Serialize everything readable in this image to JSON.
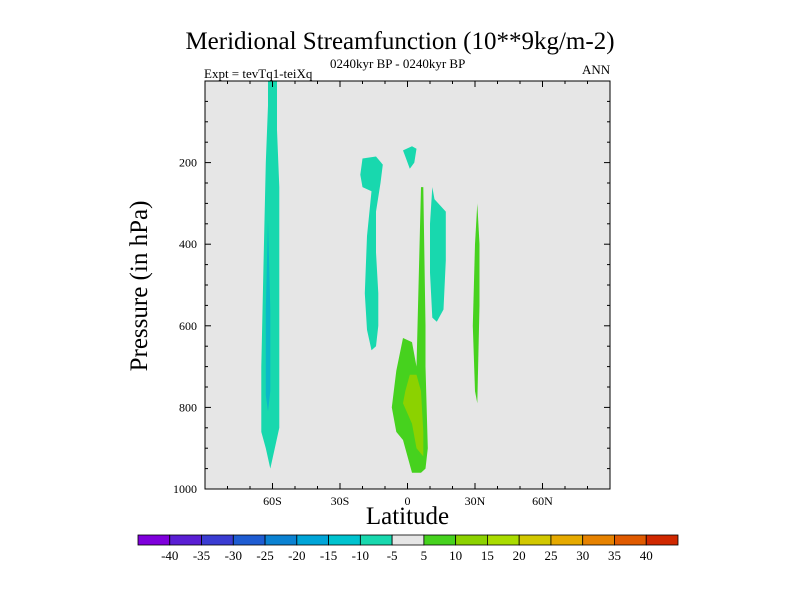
{
  "chart_data": {
    "type": "contour",
    "title": "Meridional Streamfunction (10**9kg/m-2)",
    "subtitle_left": "Expt = tevTq1-teiXq",
    "subtitle_center": "0240kyr BP - 0240kyr BP",
    "subtitle_right": "ANN",
    "xlabel": "Latitude",
    "ylabel": "Pressure (in hPa)",
    "xlim": [
      -90,
      90
    ],
    "ylim": [
      1000,
      0
    ],
    "x_ticks": [
      "60S",
      "30S",
      "0",
      "30N",
      "60N"
    ],
    "x_tick_values": [
      -60,
      -30,
      0,
      30,
      60
    ],
    "y_ticks": [
      "200",
      "400",
      "600",
      "800",
      "1000"
    ],
    "y_tick_values": [
      200,
      400,
      600,
      800,
      1000
    ],
    "background_color": "#e6e6e6",
    "colorbar": {
      "labels": [
        "-40",
        "-35",
        "-30",
        "-25",
        "-20",
        "-15",
        "-10",
        "-5",
        "5",
        "10",
        "15",
        "20",
        "25",
        "30",
        "35",
        "40"
      ],
      "colors": [
        "#7f00dc",
        "#5a1ed4",
        "#3a3cd2",
        "#1e5cd2",
        "#0a82d2",
        "#00a5d8",
        "#00c3cf",
        "#18d8ae",
        "#e6e6e6",
        "#46d21e",
        "#8cd200",
        "#aadc00",
        "#d2c800",
        "#e6aa00",
        "#e68200",
        "#e05a00",
        "#d02800"
      ]
    },
    "regions": [
      {
        "name": "neg-sh-high",
        "level": "-10",
        "color": "#18d8ae",
        "polygon": [
          [
            -62,
            0
          ],
          [
            -58,
            0
          ],
          [
            -58,
            120
          ],
          [
            -57,
            260
          ],
          [
            -57,
            500
          ],
          [
            -57,
            850
          ],
          [
            -59,
            900
          ],
          [
            -61,
            950
          ],
          [
            -63,
            900
          ],
          [
            -65,
            860
          ],
          [
            -65,
            700
          ],
          [
            -64,
            450
          ],
          [
            -63,
            200
          ],
          [
            -62,
            60
          ]
        ]
      },
      {
        "name": "neg-sh-core",
        "level": "-15",
        "color": "#0ab8c8",
        "polygon": [
          [
            -62,
            340
          ],
          [
            -61,
            560
          ],
          [
            -61,
            760
          ],
          [
            -62,
            810
          ],
          [
            -63,
            770
          ],
          [
            -63,
            560
          ]
        ]
      },
      {
        "name": "neg-subtrop-south",
        "level": "-10",
        "color": "#18d8ae",
        "polygon": [
          [
            -20,
            190
          ],
          [
            -14,
            185
          ],
          [
            -11,
            205
          ],
          [
            -12,
            250
          ],
          [
            -14,
            320
          ],
          [
            -14,
            420
          ],
          [
            -13,
            520
          ],
          [
            -13,
            600
          ],
          [
            -14,
            650
          ],
          [
            -16,
            660
          ],
          [
            -18,
            610
          ],
          [
            -19,
            520
          ],
          [
            -18,
            380
          ],
          [
            -16,
            270
          ],
          [
            -20,
            260
          ],
          [
            -21,
            230
          ]
        ]
      },
      {
        "name": "neg-eq-small",
        "level": "-10",
        "color": "#18d8ae",
        "polygon": [
          [
            -2,
            170
          ],
          [
            2,
            160
          ],
          [
            4,
            166
          ],
          [
            3,
            200
          ],
          [
            1,
            215
          ],
          [
            -1,
            185
          ]
        ]
      },
      {
        "name": "neg-nh-narrow",
        "level": "-10",
        "color": "#18d8ae",
        "polygon": [
          [
            11,
            260
          ],
          [
            12,
            290
          ],
          [
            17,
            320
          ],
          [
            17,
            440
          ],
          [
            16,
            560
          ],
          [
            13,
            590
          ],
          [
            11,
            580
          ],
          [
            10,
            470
          ],
          [
            10,
            350
          ]
        ]
      },
      {
        "name": "pos-lower-eq",
        "level": "5",
        "color": "#46d21e",
        "polygon": [
          [
            -2,
            630
          ],
          [
            2,
            640
          ],
          [
            4,
            700
          ],
          [
            6,
            260
          ],
          [
            7,
            260
          ],
          [
            8,
            600
          ],
          [
            8,
            700
          ],
          [
            9,
            900
          ],
          [
            8,
            950
          ],
          [
            6,
            960
          ],
          [
            2,
            960
          ],
          [
            -2,
            880
          ],
          [
            -5,
            860
          ],
          [
            -7,
            800
          ],
          [
            -5,
            710
          ]
        ]
      },
      {
        "name": "pos-lower-core",
        "level": "10",
        "color": "#8cd200",
        "polygon": [
          [
            1,
            720
          ],
          [
            4,
            720
          ],
          [
            6,
            760
          ],
          [
            7,
            860
          ],
          [
            7,
            920
          ],
          [
            4,
            900
          ],
          [
            2,
            840
          ],
          [
            -2,
            790
          ],
          [
            -1,
            760
          ]
        ]
      },
      {
        "name": "pos-nh-thin",
        "level": "5",
        "color": "#46d21e",
        "polygon": [
          [
            31,
            300
          ],
          [
            32,
            400
          ],
          [
            32,
            550
          ],
          [
            31,
            790
          ],
          [
            30,
            760
          ],
          [
            29,
            600
          ],
          [
            30,
            400
          ]
        ]
      }
    ]
  }
}
